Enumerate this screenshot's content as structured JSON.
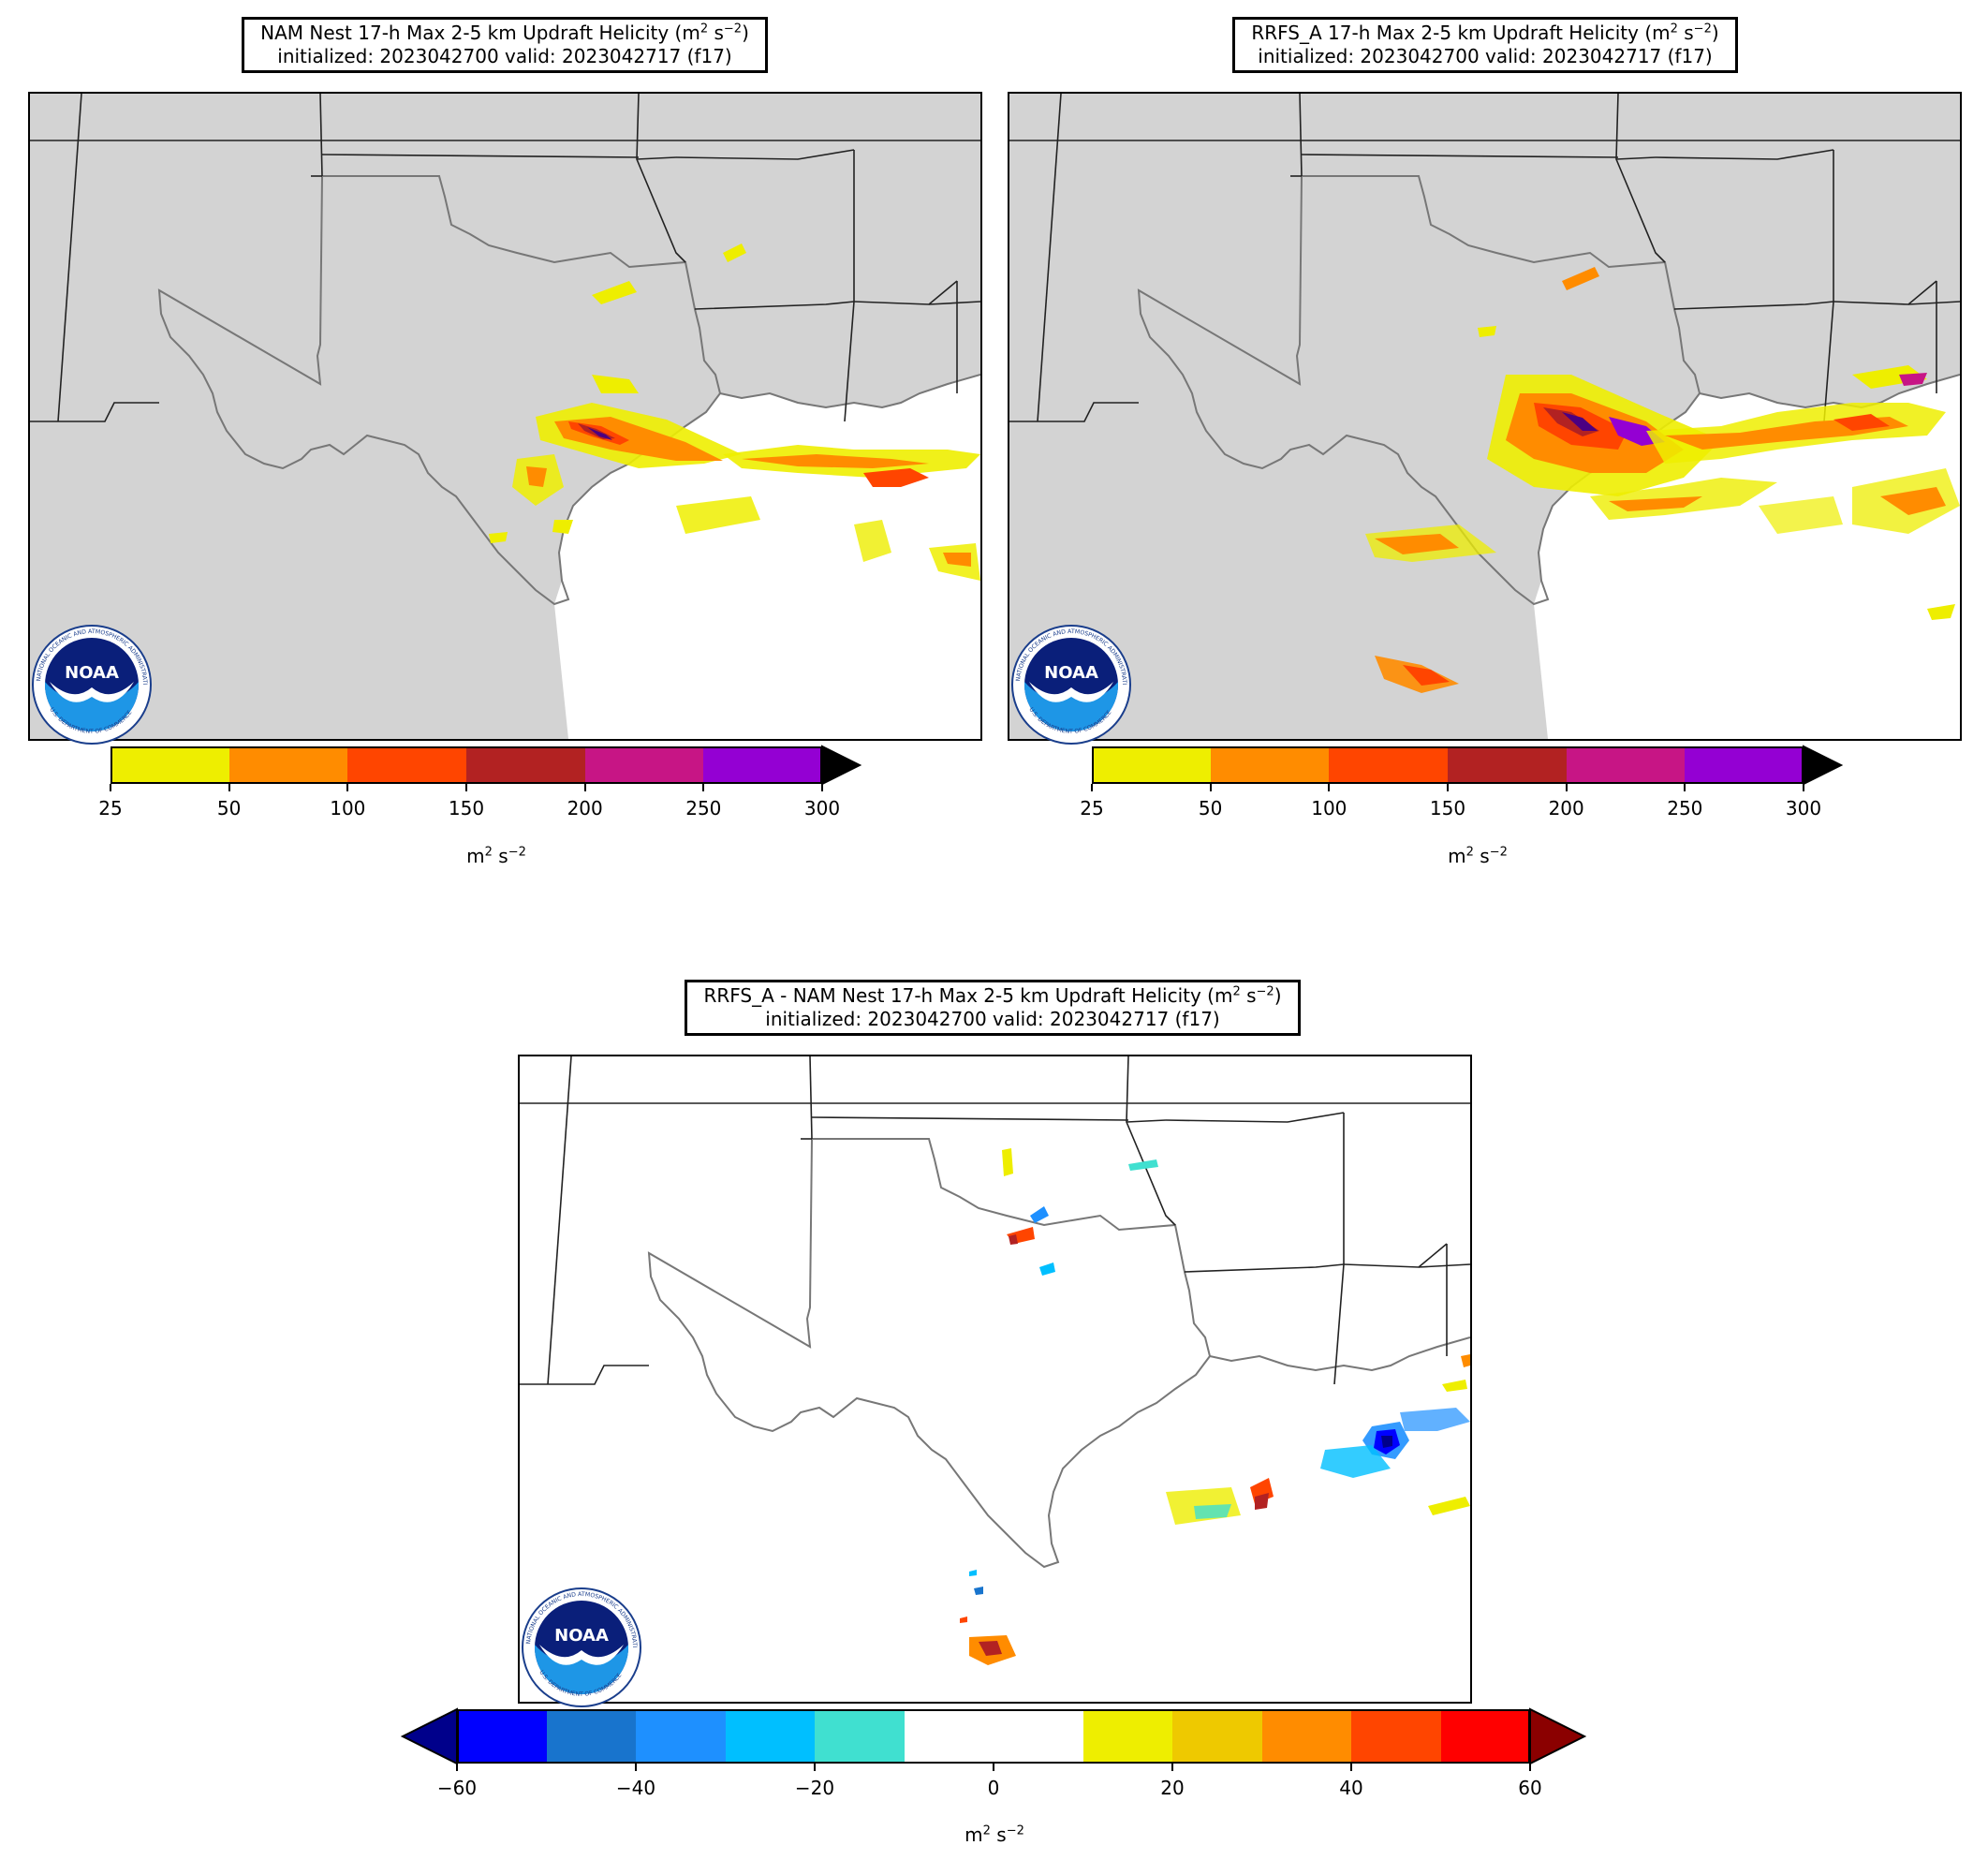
{
  "panels": [
    {
      "id": "nam",
      "title_line1": "NAM Nest 17-h Max 2-5 km Updraft Helicity (m",
      "title_line2": "initialized: 2023042700 valid: 2023042717 (f17)",
      "colorbar": {
        "ticks": [
          "25",
          "50",
          "100",
          "150",
          "200",
          "250",
          "300"
        ],
        "colors": [
          "#eeee00",
          "#ff8c00",
          "#ff4500",
          "#b22222",
          "#c71585",
          "#9400d3"
        ],
        "extend_color": "#000000",
        "units": "m"
      }
    },
    {
      "id": "rrfs",
      "title_line1": "RRFS_A 17-h Max 2-5 km Updraft Helicity (m",
      "title_line2": "initialized: 2023042700 valid: 2023042717 (f17)",
      "colorbar": {
        "ticks": [
          "25",
          "50",
          "100",
          "150",
          "200",
          "250",
          "300"
        ],
        "colors": [
          "#eeee00",
          "#ff8c00",
          "#ff4500",
          "#b22222",
          "#c71585",
          "#9400d3"
        ],
        "extend_color": "#000000",
        "units": "m"
      }
    },
    {
      "id": "diff",
      "title_line1": "RRFS_A - NAM Nest 17-h Max 2-5 km Updraft Helicity (m",
      "title_line2": "initialized: 2023042700 valid: 2023042717 (f17)",
      "colorbar": {
        "ticks": [
          "−60",
          "−40",
          "−20",
          "0",
          "20",
          "40",
          "60"
        ],
        "colors": [
          "#0000ff",
          "#1874cd",
          "#1e90ff",
          "#00bfff",
          "#40e0d0",
          "#ffffff",
          "#ffffff",
          "#eeee00",
          "#eec900",
          "#ff8c00",
          "#ff4500",
          "#ff0000"
        ],
        "extend_low": "#00008b",
        "extend_high": "#8b0000",
        "units": "m"
      }
    }
  ],
  "units_sup1": "2",
  "units_s": " s",
  "units_sup2": "−2",
  "title_units_close": ")",
  "logo": {
    "text": "NOAA",
    "ring_text_top": "NATIONAL OCEANIC AND ATMOSPHERIC ADMINISTRATION",
    "ring_text_bottom": "U.S. DEPARTMENT OF COMMERCE"
  },
  "colors": {
    "land": "#d3d3d3",
    "water": "#ffffff",
    "state_lines": "#222222",
    "coast": "#777777"
  }
}
